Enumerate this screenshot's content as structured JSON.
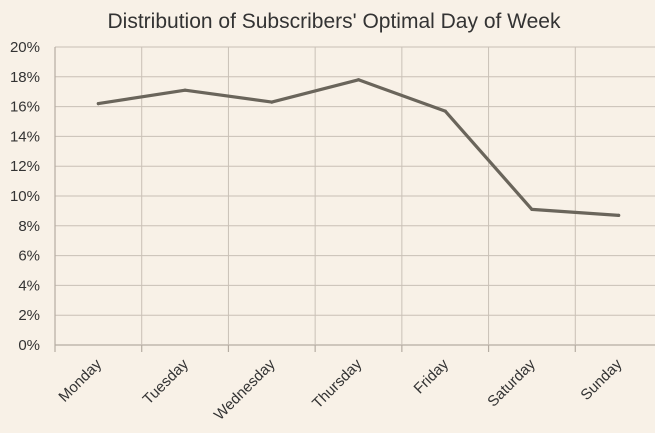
{
  "chart_data": {
    "type": "line",
    "title": "Distribution of Subscribers' Optimal Day of Week",
    "xlabel": "",
    "ylabel": "",
    "categories": [
      "Monday",
      "Tuesday",
      "Wednesday",
      "Thursday",
      "Friday",
      "Saturday",
      "Sunday"
    ],
    "series": [
      {
        "values": [
          16.2,
          17.1,
          16.3,
          17.8,
          15.7,
          9.1,
          8.7
        ]
      }
    ],
    "ylim": [
      0,
      20
    ],
    "yticks": [
      0,
      2,
      4,
      6,
      8,
      10,
      12,
      14,
      16,
      18,
      20
    ],
    "ytick_labels": [
      "0%",
      "2%",
      "4%",
      "6%",
      "8%",
      "10%",
      "12%",
      "14%",
      "16%",
      "18%",
      "20%"
    ],
    "grid": true,
    "legend": "none",
    "colors": {
      "line": "#6a655b",
      "background": "#f8f1e7",
      "grid": "#c9c0b6"
    }
  }
}
